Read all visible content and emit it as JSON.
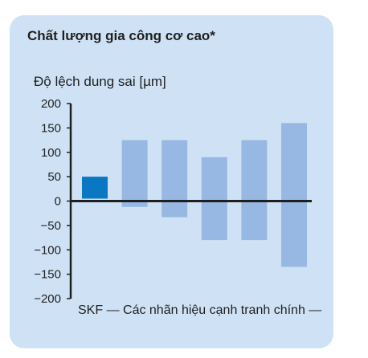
{
  "chart_data": {
    "type": "bar",
    "title": "Chất lượng gia công cơ cao*",
    "ylabel": "Độ lệch dung sai [µm]",
    "xlabel": "SKF — Các nhãn hiệu cạnh tranh chính —",
    "ylim": [
      -200,
      200
    ],
    "yticks": [
      200,
      150,
      100,
      50,
      0,
      -50,
      -100,
      -150,
      -200
    ],
    "ytick_labels": [
      "200",
      "150",
      "100",
      "50",
      "0",
      "−50",
      "−100",
      "−150",
      "−200"
    ],
    "grid": false,
    "bars": [
      {
        "low": 5,
        "high": 50,
        "color": "#0a77c2"
      },
      {
        "low": -12,
        "high": 125,
        "color": "#97b8e2"
      },
      {
        "low": -33,
        "high": 125,
        "color": "#97b8e2"
      },
      {
        "low": -80,
        "high": 90,
        "color": "#97b8e2"
      },
      {
        "low": -80,
        "high": 125,
        "color": "#97b8e2"
      },
      {
        "low": -135,
        "high": 160,
        "color": "#97b8e2"
      }
    ],
    "colors": {
      "panel_background": "#cfe2f5",
      "skf_bar": "#0a77c2",
      "competitor_bar": "#97b8e2",
      "axis": "#1f1f1f"
    }
  }
}
